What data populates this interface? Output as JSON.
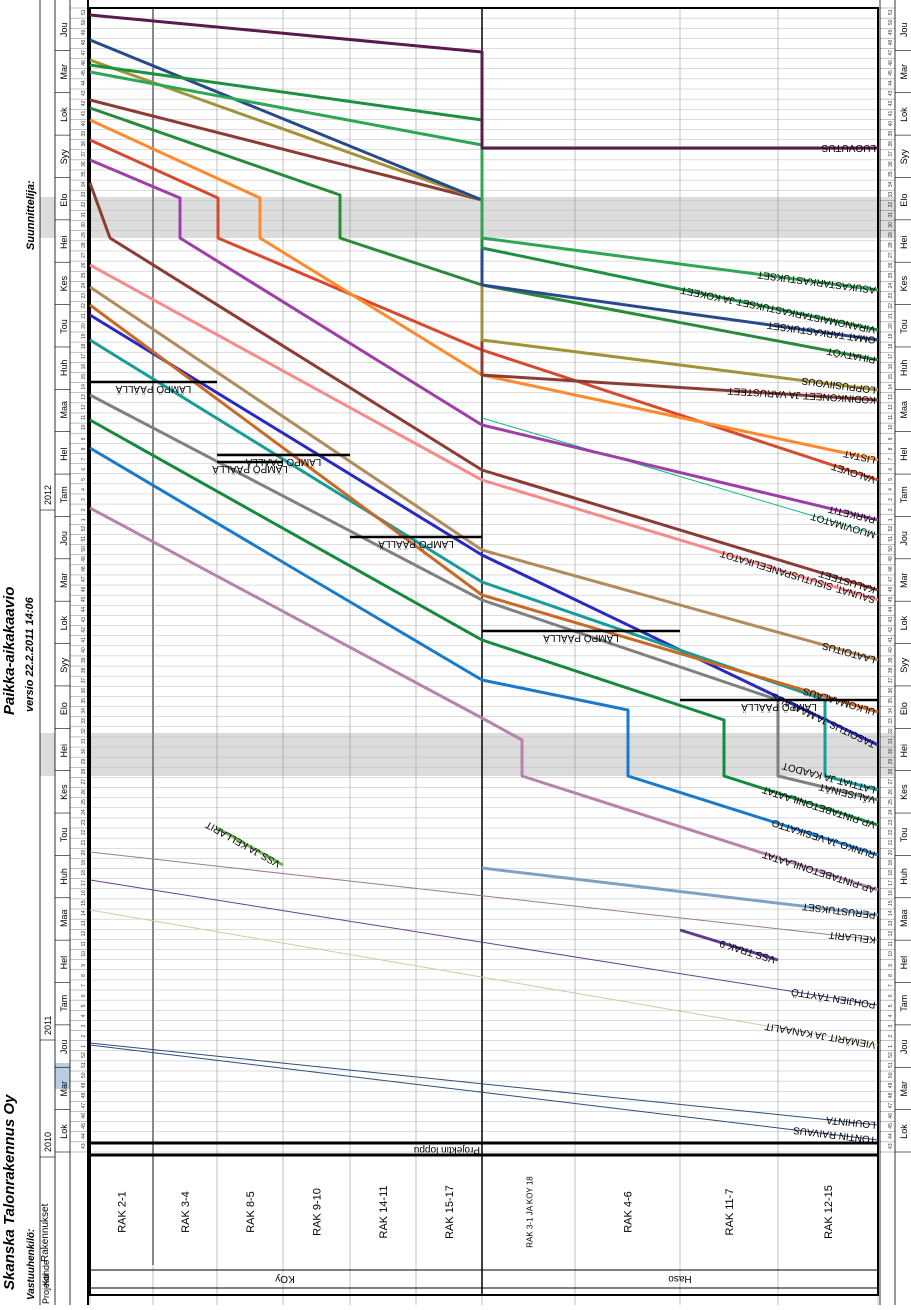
{
  "header": {
    "company": "Skanska Talonrakennus Oy",
    "responsible_label": "Vastuuhenkilö:",
    "designer_label": "Suunnittelija:",
    "title": "Paikka-aikakaavio",
    "version": "versio 22.2.2011 14:06"
  },
  "table_headers": {
    "project": "Projekti",
    "site": "Kohde",
    "buildings": "Rakennukset"
  },
  "sites": [
    {
      "name": "KOy",
      "buildings": [
        "RAK 2-1",
        "RAK 3-4",
        "RAK 8-5",
        "RAK 9-10",
        "RAK 14-11",
        "RAK 15-17"
      ]
    },
    {
      "name": "Haso",
      "buildings": [
        "RAK 3-1 JA KOY 18",
        "RAK 4-6",
        "RAK 11-7",
        "RAK 12-15"
      ]
    }
  ],
  "project_end_label": "Projektin loppu",
  "calendar": {
    "years": [
      "2010",
      "2011",
      "2012"
    ],
    "months": [
      "Lok",
      "Mar",
      "Jou",
      "Tam",
      "Hel",
      "Maa",
      "Huh",
      "Tou",
      "Kes",
      "Hei",
      "Elo",
      "Syy",
      "Lok",
      "Mar",
      "Jou",
      "Tam",
      "Hel",
      "Maa",
      "Huh",
      "Tou",
      "Kes",
      "Hei",
      "Elo",
      "Syy",
      "Lok",
      "Mar",
      "Jou"
    ],
    "week_start": 43,
    "highlighted_month": "Jou"
  },
  "chart_data": {
    "type": "line",
    "x_axis": "location",
    "y_axis": "time (weeks)",
    "categories": [
      "RAK 2-1",
      "RAK 3-4",
      "RAK 8-5",
      "RAK 9-10",
      "RAK 14-11",
      "RAK 15-17",
      "RAK 3-1 JA KOY 18",
      "RAK 4-6",
      "RAK 11-7",
      "RAK 12-15"
    ],
    "holiday_bands": [
      {
        "label": "Hei",
        "from_week": "2012-27",
        "to_week": "2012-32"
      },
      {
        "label": "Hei",
        "from_week": "2011-28",
        "to_week": "2011-32"
      }
    ],
    "series": [
      {
        "name": "TONTIN RAIVAUS",
        "color": "#2c4f7c"
      },
      {
        "name": "LOUHINTA",
        "color": "#2c4f7c"
      },
      {
        "name": "VIEMÄRIT JA KANAALIT",
        "color": "#c9cfa0"
      },
      {
        "name": "POHJIEN TÄYTTÖ",
        "color": "#6a3f90"
      },
      {
        "name": "VSS TRAK 9",
        "color": "#5e3a8c"
      },
      {
        "name": "VSS JA KELLARIT",
        "color": "#6fb84a"
      },
      {
        "name": "KELLARIT",
        "color": "#a0789e"
      },
      {
        "name": "PERUSTUKSET",
        "color": "#7fa1c4"
      },
      {
        "name": "AP-PINTABETONILAATAT",
        "color": "#b684ab"
      },
      {
        "name": "RUNKO JA VESIKATTO",
        "color": "#1a7ac9"
      },
      {
        "name": "VP-PINTABETONILAATAT",
        "color": "#158a3c"
      },
      {
        "name": "VÄLISEINÄT",
        "color": "#808080"
      },
      {
        "name": "TASOITUS JA MAALAUS",
        "color": "#2b2ac0"
      },
      {
        "name": "LATTIAT JA KAADOT",
        "color": "#179c98"
      },
      {
        "name": "ULKOMAALAUS",
        "color": "#c66a26"
      },
      {
        "name": "LAATOITUS",
        "color": "#b38a5c"
      },
      {
        "name": "SAUNAT, SISUTUSPANEELIKATOT",
        "color": "#f58c8c"
      },
      {
        "name": "KALUSTEET",
        "color": "#8b3d35"
      },
      {
        "name": "MUOVIMATOT",
        "color": "#10b886"
      },
      {
        "name": "PARKETIT",
        "color": "#9e3fa8"
      },
      {
        "name": "VALOVET",
        "color": "#d64a2e"
      },
      {
        "name": "LISTAT",
        "color": "#ff8a2e"
      },
      {
        "name": "PIHATYÖT",
        "color": "#2a8a3a"
      },
      {
        "name": "KODINKONEET JA VARUSTEET",
        "color": "#8b3d35"
      },
      {
        "name": "LOPPUSIIVOUS",
        "color": "#a39238"
      },
      {
        "name": "OMAT TARKASTUKSET",
        "color": "#284a8c"
      },
      {
        "name": "VIRANOMAISTARKASTUKSET JA KOKEET",
        "color": "#1e9040"
      },
      {
        "name": "ASUKASTARKASTUKSET",
        "color": "#2fa653"
      },
      {
        "name": "LUOVUTUS",
        "color": "#5b1a4f"
      }
    ],
    "milestones": [
      {
        "label": "LÄMPÖ PÄÄLLÄ"
      },
      {
        "label": "LÄMPÖ PÄÄLLÄ"
      },
      {
        "label": "LÄMPÖ PÄÄLLÄ"
      },
      {
        "label": "LÄMPÖ PÄÄLLÄ"
      },
      {
        "label": "LÄMPÖ PÄÄLLÄ"
      },
      {
        "label": "LÄMPÖ PÄÄLLÄ"
      }
    ]
  }
}
